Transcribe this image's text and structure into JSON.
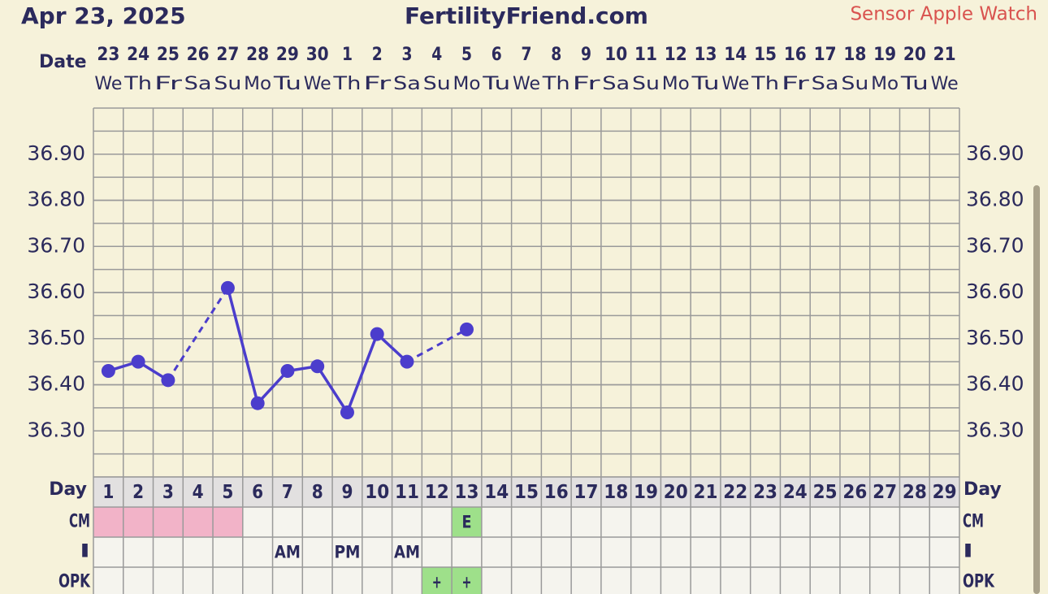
{
  "chart_data": {
    "type": "line",
    "title": "FertilityFriend.com",
    "date_heading": "Apr 23, 2025",
    "sensor": "Sensor Apple Watch",
    "date_label": "Date",
    "day_label": "Day",
    "categories": [
      "23",
      "24",
      "25",
      "26",
      "27",
      "28",
      "29",
      "30",
      "1",
      "2",
      "3",
      "4",
      "5",
      "6",
      "7",
      "8",
      "9",
      "10",
      "11",
      "12",
      "13",
      "14",
      "15",
      "16",
      "17",
      "18",
      "19",
      "20",
      "21"
    ],
    "weekdays": [
      "We",
      "Th",
      "Fr",
      "Sa",
      "Su",
      "Mo",
      "Tu",
      "We",
      "Th",
      "Fr",
      "Sa",
      "Su",
      "Mo",
      "Tu",
      "We",
      "Th",
      "Fr",
      "Sa",
      "Su",
      "Mo",
      "Tu",
      "We",
      "Th",
      "Fr",
      "Sa",
      "Su",
      "Mo",
      "Tu",
      "We"
    ],
    "days": [
      1,
      2,
      3,
      4,
      5,
      6,
      7,
      8,
      9,
      10,
      11,
      12,
      13,
      14,
      15,
      16,
      17,
      18,
      19,
      20,
      21,
      22,
      23,
      24,
      25,
      26,
      27,
      28,
      29
    ],
    "series": [
      {
        "color": "#4b3dcc",
        "values": [
          36.43,
          36.45,
          36.41,
          null,
          36.61,
          36.36,
          36.43,
          36.44,
          36.34,
          36.51,
          36.45,
          null,
          36.52,
          null,
          null,
          null,
          null,
          null,
          null,
          null,
          null,
          null,
          null,
          null,
          null,
          null,
          null,
          null,
          null
        ]
      }
    ],
    "ylim": [
      36.2,
      37.0
    ],
    "yticks": [
      {
        "value": 36.3,
        "label": "36.30"
      },
      {
        "value": 36.4,
        "label": "36.40"
      },
      {
        "value": 36.5,
        "label": "36.50"
      },
      {
        "value": 36.6,
        "label": "36.60"
      },
      {
        "value": 36.7,
        "label": "36.70"
      },
      {
        "value": 36.8,
        "label": "36.80"
      },
      {
        "value": 36.9,
        "label": "36.90"
      }
    ],
    "grid": true,
    "rows": [
      {
        "label": "CM",
        "values": [
          null,
          null,
          null,
          null,
          null,
          null,
          null,
          null,
          null,
          null,
          null,
          null,
          "E",
          null,
          null,
          null,
          null,
          null,
          null,
          null,
          null,
          null,
          null,
          null,
          null,
          null,
          null,
          null,
          null
        ],
        "colors": [
          "#f2b3c8",
          "#f2b3c8",
          "#f2b3c8",
          "#f2b3c8",
          "#f2b3c8",
          null,
          null,
          null,
          null,
          null,
          null,
          null,
          "#9ee08a",
          null,
          null,
          null,
          null,
          null,
          null,
          null,
          null,
          null,
          null,
          null,
          null,
          null,
          null,
          null,
          null
        ]
      },
      {
        "label": "I",
        "values": [
          null,
          null,
          null,
          null,
          null,
          null,
          "AM",
          null,
          "PM",
          null,
          "AM",
          null,
          null,
          null,
          null,
          null,
          null,
          null,
          null,
          null,
          null,
          null,
          null,
          null,
          null,
          null,
          null,
          null,
          null
        ],
        "colors": [
          null,
          null,
          null,
          null,
          null,
          null,
          null,
          null,
          null,
          null,
          null,
          null,
          null,
          null,
          null,
          null,
          null,
          null,
          null,
          null,
          null,
          null,
          null,
          null,
          null,
          null,
          null,
          null,
          null
        ]
      },
      {
        "label": "OPK",
        "values": [
          null,
          null,
          null,
          null,
          null,
          null,
          null,
          null,
          null,
          null,
          null,
          "+",
          "+",
          null,
          null,
          null,
          null,
          null,
          null,
          null,
          null,
          null,
          null,
          null,
          null,
          null,
          null,
          null,
          null
        ],
        "colors": [
          null,
          null,
          null,
          null,
          null,
          null,
          null,
          null,
          null,
          null,
          null,
          "#9ee08a",
          "#9ee08a",
          null,
          null,
          null,
          null,
          null,
          null,
          null,
          null,
          null,
          null,
          null,
          null,
          null,
          null,
          null,
          null
        ]
      }
    ]
  }
}
